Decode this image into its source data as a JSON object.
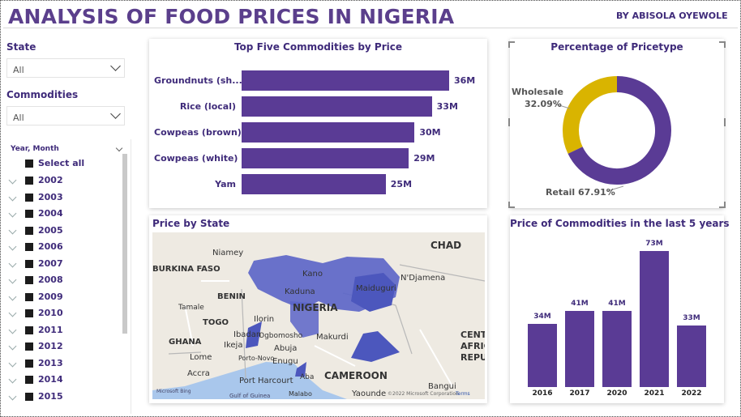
{
  "header": {
    "title": "ANALYSIS OF FOOD PRICES IN NIGERIA",
    "byline": "BY ABISOLA OYEWOLE"
  },
  "slicers": {
    "state": {
      "label": "State",
      "value": "All"
    },
    "commodities": {
      "label": "Commodities",
      "value": "All"
    },
    "year_month": {
      "label": "Year, Month",
      "select_all": "Select all",
      "years": [
        "2002",
        "2003",
        "2004",
        "2005",
        "2006",
        "2007",
        "2008",
        "2009",
        "2010",
        "2011",
        "2012",
        "2013",
        "2014",
        "2015"
      ]
    }
  },
  "colors": {
    "primary": "#5a3b95",
    "wholesale": "#d9b400",
    "title": "#5b3f8c",
    "map_region": "#5a64c8"
  },
  "charts": {
    "top5": {
      "title": "Top Five Commodities by Price"
    },
    "pricetype": {
      "title": "Percentage of Pricetype"
    },
    "map": {
      "title": "Price by State"
    },
    "last5": {
      "title": "Price of Commodities in the last 5 years"
    }
  },
  "chart_data": [
    {
      "type": "bar",
      "orientation": "horizontal",
      "title": "Top Five Commodities by Price",
      "categories": [
        "Groundnuts (sh...",
        "Rice (local)",
        "Cowpeas (brown)",
        "Cowpeas (white)",
        "Yam"
      ],
      "values": [
        36,
        33,
        30,
        29,
        25
      ],
      "value_labels": [
        "36M",
        "33M",
        "30M",
        "29M",
        "25M"
      ],
      "xlim": [
        0,
        36
      ]
    },
    {
      "type": "pie",
      "variant": "donut",
      "title": "Percentage of Pricetype",
      "slices": [
        {
          "label": "Wholesale",
          "value": 32.09,
          "display": "32.09%",
          "color": "#d9b400"
        },
        {
          "label": "Retail",
          "value": 67.91,
          "display": "67.91%",
          "color": "#5a3b95"
        }
      ]
    },
    {
      "type": "bar",
      "orientation": "vertical",
      "title": "Price of Commodities in the last 5 years",
      "categories": [
        "2016",
        "2017",
        "2020",
        "2021",
        "2022"
      ],
      "values": [
        34,
        41,
        41,
        73,
        33
      ],
      "value_labels": [
        "34M",
        "41M",
        "41M",
        "73M",
        "33M"
      ],
      "ylim": [
        0,
        73
      ]
    }
  ],
  "map_labels": {
    "chad": "CHAD",
    "burkina": "BURKINA FASO",
    "niamey": "Niamey",
    "benin": "BENIN",
    "nigeria": "NIGERIA",
    "kano": "Kano",
    "kaduna": "Kaduna",
    "maiduguri": "Maiduguri",
    "ndjamena": "N'Djamena",
    "tamale": "Tamale",
    "togo": "TOGO",
    "ghana": "GHANA",
    "ilorin": "Ilorin",
    "ogbomosho": "Ogbomosho",
    "abuja": "Abuja",
    "ibadan": "Ibadan",
    "ikeja": "Ikeja",
    "makurdi": "Makurdi",
    "enugu": "Enugu",
    "lome": "Lome",
    "portonovo": "Porto-Novo",
    "accra": "Accra",
    "portharcourt": "Port Harcourt",
    "aba": "Aba",
    "cameroon": "CAMEROON",
    "central_africa": "CENT AFRIC REPU",
    "bangui": "Bangui",
    "yaounde": "Yaounde",
    "malabo": "Malabo",
    "gulf": "Gulf of Guinea",
    "bing": "Microsoft Bing",
    "copyright": "©2022 Microsoft Corporation",
    "terms": "Terms"
  }
}
